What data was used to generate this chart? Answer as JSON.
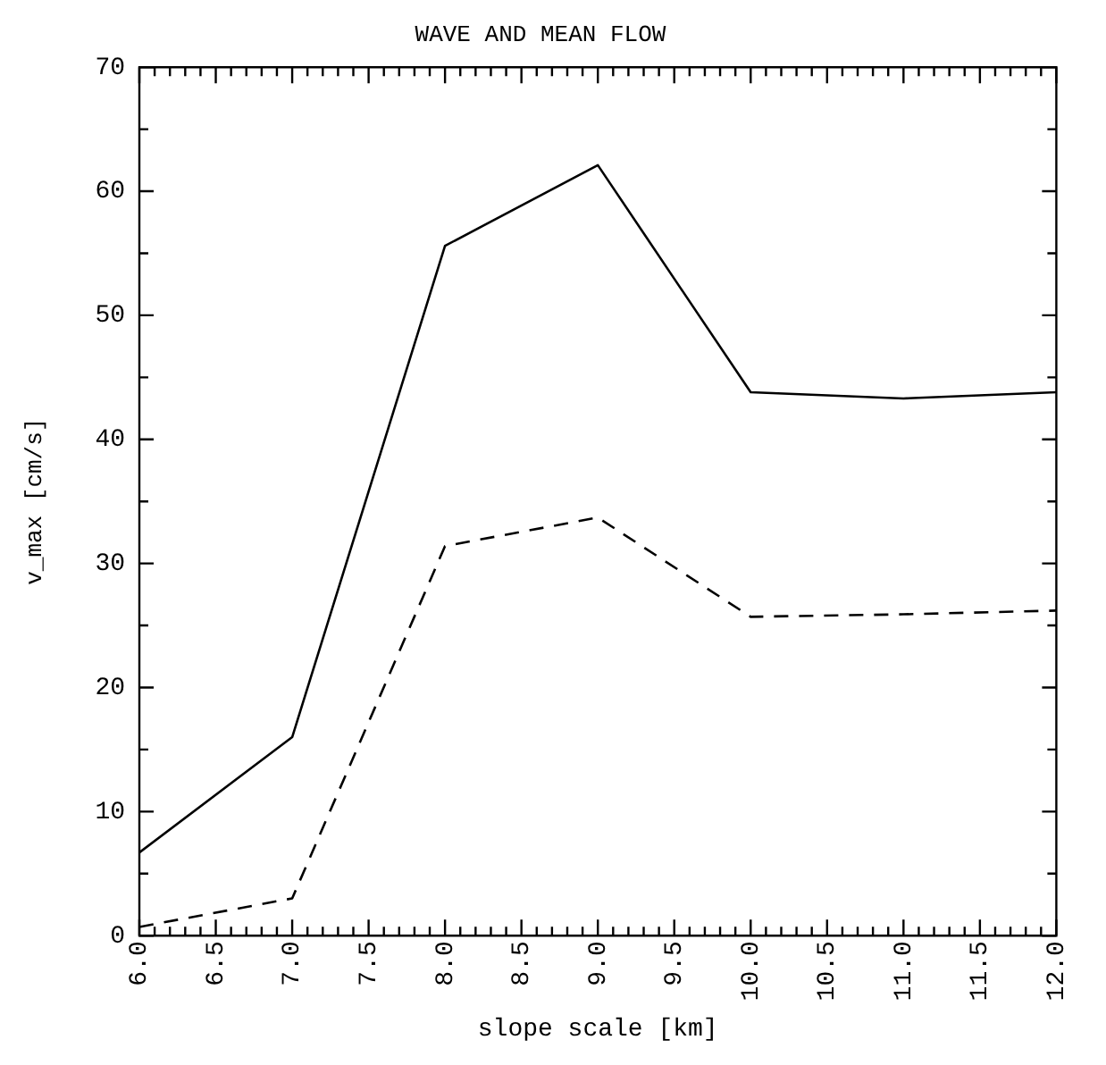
{
  "chart_data": {
    "type": "line",
    "title": "WAVE AND MEAN FLOW",
    "xlabel": "slope scale [km]",
    "ylabel": "v_max [cm/s]",
    "x": [
      6,
      7,
      8,
      9,
      10,
      11,
      12
    ],
    "series": [
      {
        "color": "#000000",
        "line_style": "solid",
        "values": [
          6.7,
          16,
          55.6,
          62.1,
          43.8,
          43.3,
          43.8
        ]
      },
      {
        "color": "#000000",
        "line_style": "dashed",
        "values": [
          0.7,
          3,
          31.4,
          33.7,
          25.7,
          25.9,
          26.2
        ]
      }
    ],
    "xlim": [
      6,
      12
    ],
    "xticks": [
      {
        "value": 6,
        "label": "6.0"
      },
      {
        "value": 6.5,
        "label": "6.5"
      },
      {
        "value": 7,
        "label": "7.0"
      },
      {
        "value": 7.5,
        "label": "7.5"
      },
      {
        "value": 8,
        "label": "8.0"
      },
      {
        "value": 8.5,
        "label": "8.5"
      },
      {
        "value": 9,
        "label": "9.0"
      },
      {
        "value": 9.5,
        "label": "9.5"
      },
      {
        "value": 10,
        "label": "10.0"
      },
      {
        "value": 10.5,
        "label": "10.5"
      },
      {
        "value": 11,
        "label": "11.0"
      },
      {
        "value": 11.5,
        "label": "11.5"
      },
      {
        "value": 12,
        "label": "12.0"
      }
    ],
    "ylim": [
      0,
      70
    ],
    "yticks": [
      0,
      {
        "value": 5,
        "label": null
      },
      10,
      {
        "value": 15,
        "label": null
      },
      20,
      {
        "value": 25,
        "label": null
      },
      30,
      {
        "value": 35,
        "label": null
      },
      40,
      {
        "value": 45,
        "label": null
      },
      50,
      {
        "value": 55,
        "label": null
      },
      60,
      {
        "value": 65,
        "label": null
      },
      70
    ],
    "grid": false,
    "legend": false,
    "marker": "none"
  }
}
